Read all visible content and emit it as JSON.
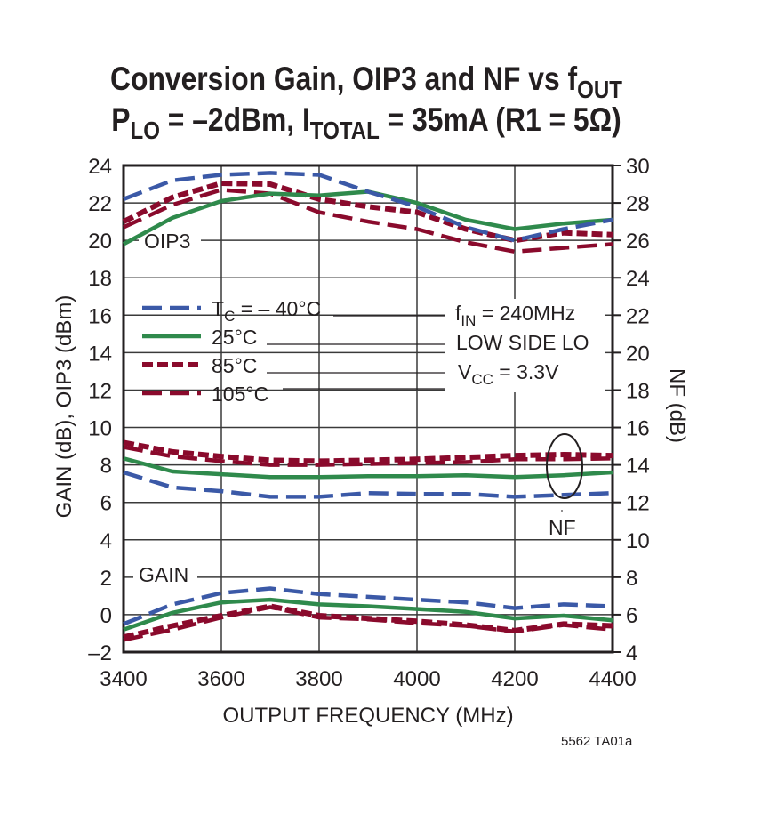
{
  "chart_data": {
    "type": "line",
    "title_line1": {
      "main": "Conversion Gain, OIP3 and NF vs f",
      "sub": "OUT"
    },
    "title_line2": {
      "p": "P",
      "p_sub": "LO",
      "mid": " = –2dBm, I",
      "i_sub": "TOTAL",
      "end": " = 35mA (R1 = 5Ω)"
    },
    "xlabel": "OUTPUT FREQUENCY (MHz)",
    "ylabel_left": "GAIN (dB), OIP3 (dBm)",
    "ylabel_right": "NF (dB)",
    "xlim": [
      3400,
      4400
    ],
    "ylim_left": [
      -2,
      24
    ],
    "ylim_right": [
      4,
      30
    ],
    "x_ticks": [
      "3400",
      "3600",
      "3800",
      "4000",
      "4200",
      "4400"
    ],
    "y_ticks_left": [
      "–2",
      "0",
      "2",
      "4",
      "6",
      "8",
      "10",
      "12",
      "14",
      "16",
      "18",
      "20",
      "22",
      "24"
    ],
    "y_ticks_right": [
      "4",
      "6",
      "8",
      "10",
      "12",
      "14",
      "16",
      "18",
      "20",
      "22",
      "24",
      "26",
      "28",
      "30"
    ],
    "grid": true,
    "annotations": {
      "oip3": "OIP3",
      "gain": "GAIN",
      "nf": "NF",
      "fin": {
        "f": "f",
        "sub": "IN",
        "rest": " = 240MHz"
      },
      "lo": "LOW SIDE LO",
      "vcc": {
        "v": "V",
        "sub": "CC",
        "rest": " = 3.3V"
      },
      "figure_id": "5562 TA01a"
    },
    "legend_placement": "center-left",
    "colors": {
      "-40C": "#3b59a7",
      "25C": "#2f8a4c",
      "85C": "#8a0a2c",
      "105C": "#8a0a2c"
    },
    "x": [
      3400,
      3500,
      3600,
      3700,
      3800,
      3900,
      4000,
      4100,
      4200,
      4300,
      4400
    ],
    "series": [
      {
        "name": "T = – 40°C",
        "legend": {
          "t": "T",
          "sub": "C",
          "rest": " = – 40°C"
        },
        "key": "-40C",
        "dash": "long",
        "oip3_dBm": [
          22.2,
          23.2,
          23.5,
          23.6,
          23.5,
          22.6,
          21.8,
          20.7,
          20.0,
          20.6,
          21.1
        ],
        "gain_dB": [
          -0.5,
          0.55,
          1.15,
          1.4,
          1.1,
          0.95,
          0.8,
          0.65,
          0.35,
          0.55,
          0.45
        ],
        "nf_dB": [
          13.6,
          12.8,
          12.6,
          12.3,
          12.3,
          12.5,
          12.45,
          12.45,
          12.3,
          12.4,
          12.5
        ]
      },
      {
        "name": "25°C",
        "legend": {
          "t": "",
          "sub": "",
          "rest": "25°C"
        },
        "key": "25C",
        "dash": "solid",
        "oip3_dBm": [
          19.8,
          21.2,
          22.1,
          22.5,
          22.4,
          22.6,
          22.0,
          21.1,
          20.6,
          20.9,
          21.1
        ],
        "gain_dB": [
          -0.8,
          0.1,
          0.65,
          0.8,
          0.55,
          0.45,
          0.3,
          0.15,
          -0.2,
          -0.05,
          -0.3
        ],
        "nf_dB": [
          14.35,
          13.65,
          13.5,
          13.35,
          13.35,
          13.4,
          13.4,
          13.45,
          13.35,
          13.45,
          13.6
        ]
      },
      {
        "name": "85°C",
        "legend": {
          "t": "",
          "sub": "",
          "rest": "85°C"
        },
        "key": "85C",
        "dash": "short",
        "oip3_dBm": [
          21.0,
          22.3,
          23.05,
          23.0,
          22.2,
          21.8,
          21.5,
          20.6,
          20.0,
          20.4,
          20.3
        ],
        "gain_dB": [
          -1.2,
          -0.6,
          -0.05,
          0.45,
          -0.05,
          -0.2,
          -0.35,
          -0.55,
          -0.85,
          -0.5,
          -0.6
        ],
        "nf_dB": [
          15.2,
          14.7,
          14.45,
          14.25,
          14.2,
          14.25,
          14.3,
          14.4,
          14.5,
          14.55,
          14.5
        ]
      },
      {
        "name": "105°C",
        "legend": {
          "t": "",
          "sub": "",
          "rest": "105°C"
        },
        "key": "105C",
        "dash": "long",
        "oip3_dBm": [
          20.7,
          21.9,
          22.7,
          22.5,
          21.5,
          21.0,
          20.6,
          19.9,
          19.4,
          19.6,
          19.8
        ],
        "gain_dB": [
          -1.35,
          -0.8,
          -0.15,
          0.4,
          -0.15,
          -0.25,
          -0.45,
          -0.6,
          -0.9,
          -0.55,
          -0.8
        ],
        "nf_dB": [
          14.95,
          14.45,
          14.2,
          14.0,
          14.0,
          14.05,
          14.1,
          14.15,
          14.3,
          14.3,
          14.35
        ]
      }
    ]
  }
}
